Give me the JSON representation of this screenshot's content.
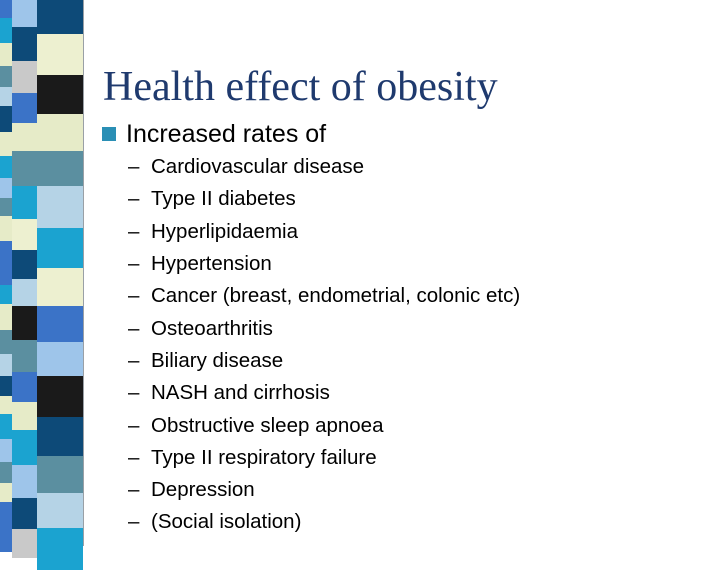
{
  "slide": {
    "title": "Health effect of obesity",
    "bullet": "Increased rates of",
    "sub_items": [
      "Cardiovascular disease",
      "Type II diabetes",
      "Hyperlipidaemia",
      "Hypertension",
      "Cancer (breast, endometrial,  colonic etc)",
      "Osteoarthritis",
      "Biliary disease",
      "NASH and cirrhosis",
      "Obstructive sleep apnoea",
      "Type II respiratory failure",
      "Depression",
      "(Social isolation)"
    ],
    "dash_glyph": "–"
  },
  "theme": {
    "title_color": "#1f3a6e",
    "bullet_color": "#2a8fb5"
  },
  "decor": {
    "stripe_palette": [
      "#3b73c7",
      "#1ba3d0",
      "#5b8fa0",
      "#0d4a78",
      "#e6ebc8",
      "#b5d3e6",
      "#9ec5ea",
      "#1a1a1a",
      "#c9c9c9",
      "#edf0d0"
    ]
  }
}
